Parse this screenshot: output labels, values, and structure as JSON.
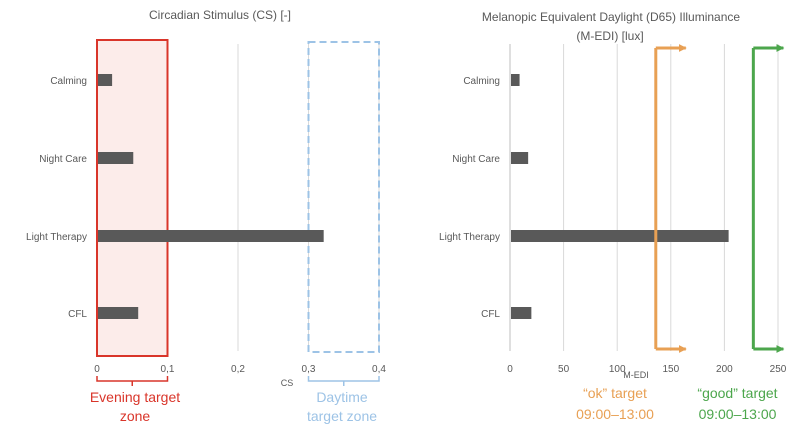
{
  "chart_data": [
    {
      "type": "bar",
      "orientation": "horizontal",
      "title": "Circadian Stimulus (CS) [-]",
      "xlabel": "CS",
      "categories": [
        "Calming",
        "Night Care",
        "Light Therapy",
        "CFL"
      ],
      "values": [
        0.02,
        0.05,
        0.32,
        0.057
      ],
      "xlim": [
        0,
        0.4
      ],
      "x_ticks": [
        0,
        0.1,
        0.2,
        0.3,
        0.4
      ],
      "x_tick_labels": [
        "0",
        "0,1",
        "0,2",
        "0,3",
        "0,4"
      ],
      "grid": "vertical",
      "bar_color": "#595959",
      "zones": [
        {
          "label_line1": "Evening target",
          "label_line2": "zone",
          "from": 0,
          "to": 0.1,
          "stroke": "#d9352a",
          "fill": "#fbe9e6",
          "dashed": false
        },
        {
          "label_line1": "Daytime",
          "label_line2": "target zone",
          "from": 0.3,
          "to": 0.4,
          "stroke": "#9dc3e6",
          "fill": "none",
          "dashed": true
        }
      ]
    },
    {
      "type": "bar",
      "orientation": "horizontal",
      "title_line1": "Melanopic Equivalent Daylight (D65) Illuminance",
      "title_line2": "(M-EDI) [lux]",
      "xlabel": "M-EDI",
      "categories": [
        "Calming",
        "Night Care",
        "Light Therapy",
        "CFL"
      ],
      "values": [
        8,
        16,
        203,
        19
      ],
      "xlim": [
        0,
        250
      ],
      "x_ticks": [
        0,
        50,
        100,
        150,
        200,
        250
      ],
      "x_tick_labels": [
        "0",
        "50",
        "100",
        "150",
        "200",
        "250"
      ],
      "grid": "vertical",
      "bar_color": "#595959",
      "thresholds": [
        {
          "value": 136,
          "label_line1": "“ok” target",
          "label_line2": "09:00–13:00",
          "color": "#e8a054"
        },
        {
          "value": 227,
          "label_line1": "“good” target",
          "label_line2": "09:00–13:00",
          "color": "#4ca64c"
        }
      ]
    }
  ]
}
